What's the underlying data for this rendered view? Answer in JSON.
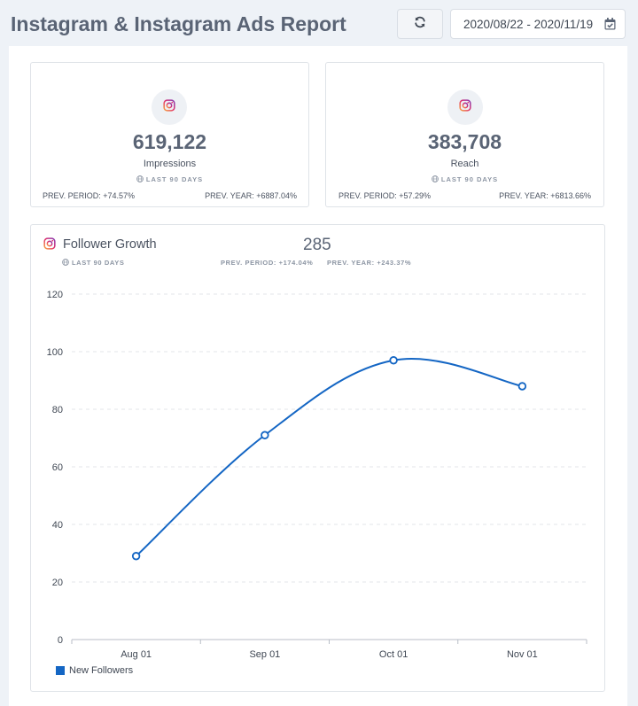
{
  "header": {
    "title": "Instagram & Instagram Ads Report",
    "date_range": "2020/08/22 - 2020/11/19"
  },
  "icons": {
    "refresh": "refresh-icon",
    "calendar": "calendar-check-icon",
    "instagram": "instagram-icon",
    "globe": "globe-icon"
  },
  "colors": {
    "accent": "#1466c4",
    "title": "#5a6475",
    "instagram_gradient": [
      "#f9a43c",
      "#e1306c",
      "#833ab4"
    ]
  },
  "metrics": [
    {
      "value": "619,122",
      "label": "Impressions",
      "period": "LAST 90 DAYS",
      "prev_period": "PREV. PERIOD: +74.57%",
      "prev_year": "PREV. YEAR: +6887.04%"
    },
    {
      "value": "383,708",
      "label": "Reach",
      "period": "LAST 90 DAYS",
      "prev_period": "PREV. PERIOD: +57.29%",
      "prev_year": "PREV. YEAR: +6813.66%"
    }
  ],
  "follower_growth": {
    "title": "Follower Growth",
    "total": "285",
    "period": "LAST 90 DAYS",
    "prev_period": "PREV. PERIOD: +174.04%",
    "prev_year": "PREV. YEAR: +243.37%"
  },
  "chart_data": {
    "type": "line",
    "categories": [
      "Aug 01",
      "Sep 01",
      "Oct 01",
      "Nov 01"
    ],
    "series": [
      {
        "name": "New Followers",
        "values": [
          29,
          71,
          97,
          88
        ],
        "color": "#1466c4"
      }
    ],
    "ylim": [
      0,
      120
    ],
    "yticks": [
      0,
      20,
      40,
      60,
      80,
      100,
      120
    ],
    "grid": true,
    "legend": "bottom-left",
    "xlabel": "",
    "ylabel": ""
  }
}
